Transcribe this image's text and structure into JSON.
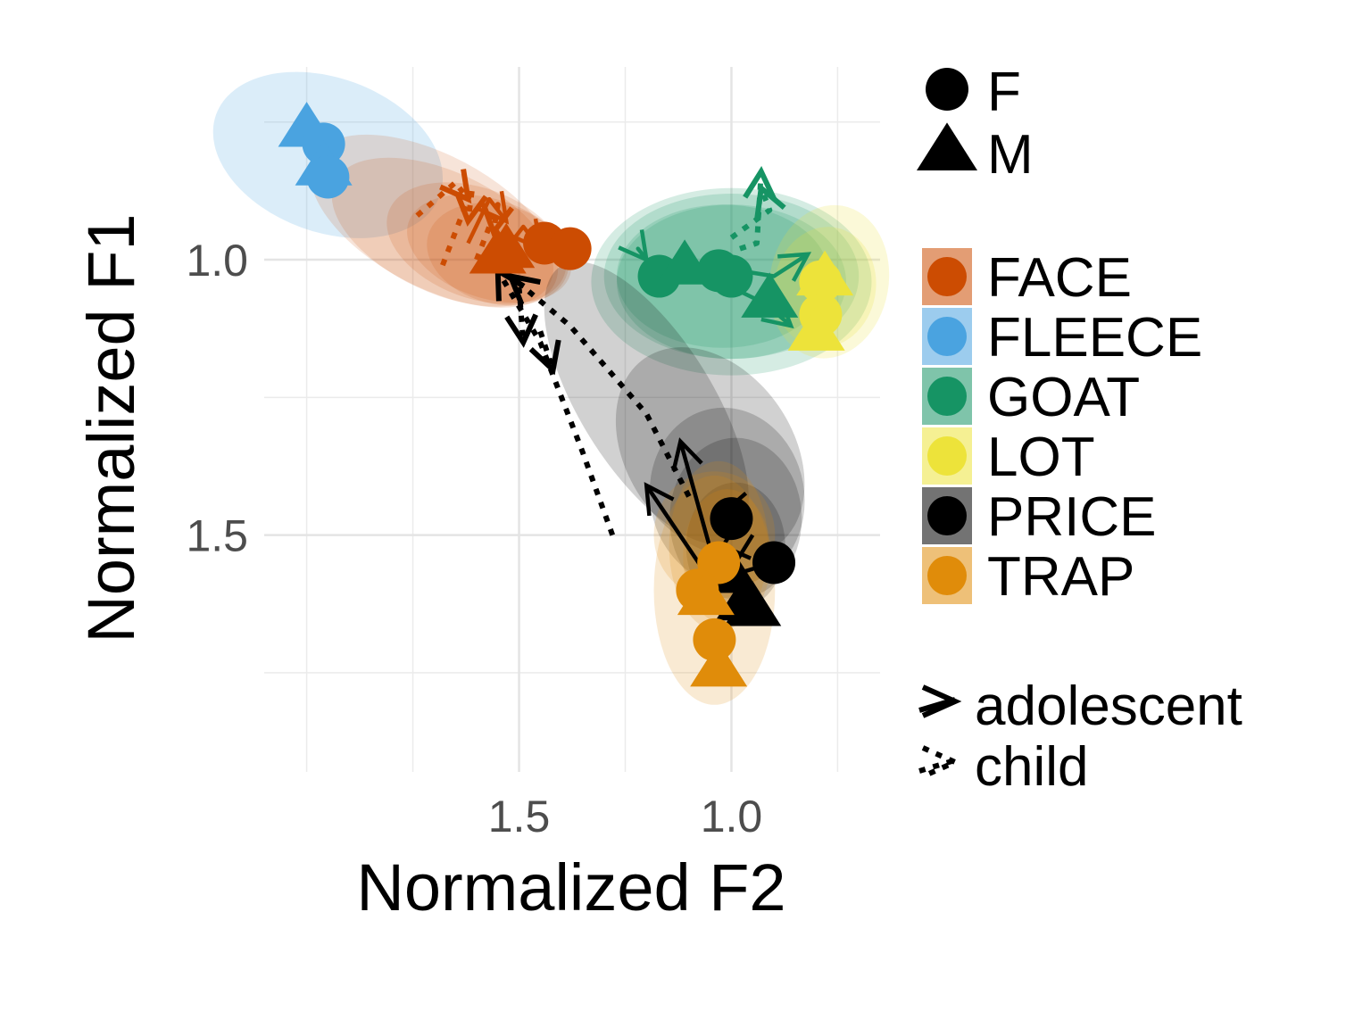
{
  "chart_data": {
    "type": "scatter",
    "title": "",
    "xlabel": "Normalized F2",
    "ylabel": "Normalized F1",
    "x_reversed": true,
    "y_reversed": true,
    "xlim": [
      2.1,
      0.65
    ],
    "ylim": [
      0.65,
      1.93
    ],
    "x_ticks": [
      {
        "value": 1.5,
        "label": "1.5"
      },
      {
        "value": 1.0,
        "label": "1.0"
      }
    ],
    "x_minor_grid": [
      2.0,
      1.75,
      1.25,
      0.75
    ],
    "y_ticks": [
      {
        "value": 1.0,
        "label": "1.0"
      },
      {
        "value": 1.5,
        "label": "1.5"
      }
    ],
    "y_minor_grid": [
      0.75,
      1.25,
      1.75
    ],
    "grid": true,
    "legend_position": "right",
    "shape_legend": {
      "items": [
        {
          "label": "F",
          "shape": "circle"
        },
        {
          "label": "M",
          "shape": "triangle"
        }
      ]
    },
    "color_legend": {
      "items": [
        {
          "label": "FACE",
          "color": "#cc4c02"
        },
        {
          "label": "FLEECE",
          "color": "#4aa3e0"
        },
        {
          "label": "GOAT",
          "color": "#169464"
        },
        {
          "label": "LOT",
          "color": "#ede33a"
        },
        {
          "label": "PRICE",
          "color": "#000000"
        },
        {
          "label": "TRAP",
          "color": "#e08c0a"
        }
      ]
    },
    "linetype_legend": {
      "items": [
        {
          "label": "adolescent",
          "dash": "solid"
        },
        {
          "label": "child",
          "dash": "dotted"
        }
      ]
    },
    "ellipses": [
      {
        "vowel": "FLEECE",
        "color": "#4aa3e0",
        "opacity": 0.2,
        "cx": 1.95,
        "cy": 0.81,
        "rx": 0.28,
        "ry": 0.14,
        "angle": 20
      },
      {
        "vowel": "FACE",
        "color": "#cc4c02",
        "opacity": 0.15,
        "cx": 1.7,
        "cy": 0.93,
        "rx": 0.32,
        "ry": 0.12,
        "angle": 28
      },
      {
        "vowel": "FACE",
        "color": "#cc4c02",
        "opacity": 0.15,
        "cx": 1.68,
        "cy": 0.95,
        "rx": 0.28,
        "ry": 0.11,
        "angle": 25
      },
      {
        "vowel": "FACE",
        "color": "#cc4c02",
        "opacity": 0.15,
        "cx": 1.6,
        "cy": 0.97,
        "rx": 0.22,
        "ry": 0.1,
        "angle": 20
      },
      {
        "vowel": "FACE",
        "color": "#cc4c02",
        "opacity": 0.15,
        "cx": 1.57,
        "cy": 0.98,
        "rx": 0.2,
        "ry": 0.09,
        "angle": 18
      },
      {
        "vowel": "FACE",
        "color": "#cc4c02",
        "opacity": 0.15,
        "cx": 1.55,
        "cy": 0.99,
        "rx": 0.17,
        "ry": 0.09,
        "angle": 15
      },
      {
        "vowel": "GOAT",
        "color": "#169464",
        "opacity": 0.18,
        "cx": 1.0,
        "cy": 1.04,
        "rx": 0.33,
        "ry": 0.17,
        "angle": 0
      },
      {
        "vowel": "GOAT",
        "color": "#169464",
        "opacity": 0.18,
        "cx": 1.0,
        "cy": 1.03,
        "rx": 0.3,
        "ry": 0.15,
        "angle": 0
      },
      {
        "vowel": "GOAT",
        "color": "#169464",
        "opacity": 0.18,
        "cx": 1.0,
        "cy": 1.04,
        "rx": 0.27,
        "ry": 0.14,
        "angle": 0
      },
      {
        "vowel": "GOAT",
        "color": "#169464",
        "opacity": 0.18,
        "cx": 1.02,
        "cy": 1.03,
        "rx": 0.25,
        "ry": 0.13,
        "angle": 0
      },
      {
        "vowel": "LOT",
        "color": "#ede33a",
        "opacity": 0.2,
        "cx": 0.77,
        "cy": 1.04,
        "rx": 0.14,
        "ry": 0.14,
        "angle": 10
      },
      {
        "vowel": "LOT",
        "color": "#ede33a",
        "opacity": 0.2,
        "cx": 0.78,
        "cy": 1.05,
        "rx": 0.12,
        "ry": 0.11,
        "angle": 10
      },
      {
        "vowel": "PRICE",
        "color": "#000000",
        "opacity": 0.18,
        "cx": 1.2,
        "cy": 1.26,
        "rx": 0.38,
        "ry": 0.12,
        "angle": 58
      },
      {
        "vowel": "PRICE",
        "color": "#000000",
        "opacity": 0.18,
        "cx": 1.05,
        "cy": 1.35,
        "rx": 0.27,
        "ry": 0.15,
        "angle": 55
      },
      {
        "vowel": "PRICE",
        "color": "#000000",
        "opacity": 0.18,
        "cx": 1.01,
        "cy": 1.43,
        "rx": 0.21,
        "ry": 0.14,
        "angle": 80
      },
      {
        "vowel": "PRICE",
        "color": "#000000",
        "opacity": 0.18,
        "cx": 0.99,
        "cy": 1.47,
        "rx": 0.19,
        "ry": 0.12,
        "angle": 90
      },
      {
        "vowel": "PRICE",
        "color": "#000000",
        "opacity": 0.18,
        "cx": 0.99,
        "cy": 1.52,
        "rx": 0.15,
        "ry": 0.09,
        "angle": 90
      },
      {
        "vowel": "TRAP",
        "color": "#e08c0a",
        "opacity": 0.18,
        "cx": 1.04,
        "cy": 1.6,
        "rx": 0.27,
        "ry": 0.11,
        "angle": 90
      },
      {
        "vowel": "TRAP",
        "color": "#e08c0a",
        "opacity": 0.18,
        "cx": 1.04,
        "cy": 1.5,
        "rx": 0.15,
        "ry": 0.11,
        "angle": 90
      },
      {
        "vowel": "TRAP",
        "color": "#e08c0a",
        "opacity": 0.18,
        "cx": 1.03,
        "cy": 1.52,
        "rx": 0.2,
        "ry": 0.09,
        "angle": 90
      },
      {
        "vowel": "TRAP",
        "color": "#e08c0a",
        "opacity": 0.18,
        "cx": 1.01,
        "cy": 1.54,
        "rx": 0.16,
        "ry": 0.08,
        "angle": 90
      }
    ],
    "trajectories": [
      {
        "vowel": "FACE",
        "group": "child",
        "color": "#cc4c02",
        "points": [
          [
            1.68,
            1.01
          ],
          [
            1.61,
            0.87
          ],
          [
            1.62,
            0.93
          ]
        ]
      },
      {
        "vowel": "FACE",
        "group": "child",
        "color": "#cc4c02",
        "points": [
          [
            1.6,
            1.0
          ],
          [
            1.55,
            0.9
          ],
          [
            1.56,
            0.95
          ]
        ]
      },
      {
        "vowel": "FACE",
        "group": "child",
        "color": "#cc4c02",
        "points": [
          [
            1.74,
            0.92
          ],
          [
            1.65,
            0.86
          ],
          [
            1.62,
            0.89
          ]
        ]
      },
      {
        "vowel": "FACE",
        "group": "adolescent",
        "color": "#cc4c02",
        "points": [
          [
            1.62,
            0.97
          ],
          [
            1.57,
            0.89
          ],
          [
            1.53,
            0.93
          ]
        ]
      },
      {
        "vowel": "FACE",
        "group": "adolescent",
        "color": "#cc4c02",
        "points": [
          [
            1.52,
            0.97
          ],
          [
            1.49,
            0.94
          ],
          [
            1.45,
            0.98
          ]
        ]
      },
      {
        "vowel": "GOAT",
        "group": "child",
        "color": "#169464",
        "points": [
          [
            0.98,
            0.98
          ],
          [
            0.94,
            0.97
          ],
          [
            0.93,
            0.84
          ]
        ]
      },
      {
        "vowel": "GOAT",
        "group": "child",
        "color": "#169464",
        "points": [
          [
            1.0,
            0.96
          ],
          [
            0.91,
            0.91
          ],
          [
            0.93,
            0.87
          ]
        ]
      },
      {
        "vowel": "GOAT",
        "group": "adolescent",
        "color": "#169464",
        "points": [
          [
            1.17,
            1.03
          ],
          [
            1.22,
            0.98
          ],
          [
            1.2,
            1.0
          ]
        ]
      },
      {
        "vowel": "GOAT",
        "group": "adolescent",
        "color": "#169464",
        "points": [
          [
            0.98,
            1.02
          ],
          [
            0.9,
            1.03
          ],
          [
            0.82,
            0.99
          ]
        ]
      },
      {
        "vowel": "GOAT",
        "group": "adolescent",
        "color": "#169464",
        "points": [
          [
            1.0,
            1.05
          ],
          [
            0.92,
            1.08
          ],
          [
            0.86,
            1.12
          ]
        ]
      },
      {
        "vowel": "PRICE",
        "group": "child",
        "color": "#000000",
        "points": [
          [
            1.28,
            1.5
          ],
          [
            1.35,
            1.35
          ],
          [
            1.45,
            1.15
          ],
          [
            1.55,
            1.02
          ]
        ]
      },
      {
        "vowel": "PRICE",
        "group": "child",
        "color": "#000000",
        "points": [
          [
            1.1,
            1.43
          ],
          [
            1.2,
            1.28
          ],
          [
            1.38,
            1.12
          ],
          [
            1.52,
            1.03
          ]
        ]
      },
      {
        "vowel": "PRICE",
        "group": "child",
        "color": "#000000",
        "points": [
          [
            1.45,
            1.13
          ],
          [
            1.42,
            1.2
          ]
        ]
      },
      {
        "vowel": "PRICE",
        "group": "child",
        "color": "#000000",
        "points": [
          [
            1.5,
            1.05
          ],
          [
            1.49,
            1.15
          ]
        ]
      },
      {
        "vowel": "PRICE",
        "group": "adolescent",
        "color": "#000000",
        "points": [
          [
            0.98,
            1.47
          ],
          [
            1.06,
            1.57
          ],
          [
            1.2,
            1.41
          ]
        ]
      },
      {
        "vowel": "PRICE",
        "group": "adolescent",
        "color": "#000000",
        "points": [
          [
            0.9,
            1.55
          ],
          [
            1.03,
            1.58
          ],
          [
            1.12,
            1.33
          ]
        ]
      },
      {
        "vowel": "PRICE",
        "group": "adolescent",
        "color": "#000000",
        "points": [
          [
            0.95,
            1.5
          ],
          [
            0.99,
            1.55
          ],
          [
            1.02,
            1.52
          ]
        ]
      },
      {
        "vowel": "PRICE",
        "group": "adolescent",
        "color": "#000000",
        "points": [
          [
            0.96,
            1.45
          ],
          [
            1.02,
            1.46
          ]
        ]
      }
    ],
    "points": [
      {
        "vowel": "FLEECE",
        "sex": "M",
        "x": 2.0,
        "y": 0.76
      },
      {
        "vowel": "FLEECE",
        "sex": "F",
        "x": 1.96,
        "y": 0.79
      },
      {
        "vowel": "FLEECE",
        "sex": "M",
        "x": 1.96,
        "y": 0.83
      },
      {
        "vowel": "FLEECE",
        "sex": "F",
        "x": 1.95,
        "y": 0.85
      },
      {
        "vowel": "FACE",
        "sex": "M",
        "x": 1.55,
        "y": 0.99
      },
      {
        "vowel": "FACE",
        "sex": "M",
        "x": 1.53,
        "y": 0.98
      },
      {
        "vowel": "FACE",
        "sex": "F",
        "x": 1.44,
        "y": 0.97
      },
      {
        "vowel": "FACE",
        "sex": "F",
        "x": 1.38,
        "y": 0.98
      },
      {
        "vowel": "GOAT",
        "sex": "F",
        "x": 1.17,
        "y": 1.03
      },
      {
        "vowel": "GOAT",
        "sex": "M",
        "x": 1.11,
        "y": 1.01
      },
      {
        "vowel": "GOAT",
        "sex": "F",
        "x": 1.0,
        "y": 1.03
      },
      {
        "vowel": "GOAT",
        "sex": "F",
        "x": 1.03,
        "y": 1.02
      },
      {
        "vowel": "GOAT",
        "sex": "M",
        "x": 0.91,
        "y": 1.07
      },
      {
        "vowel": "LOT",
        "sex": "M",
        "x": 0.78,
        "y": 1.03
      },
      {
        "vowel": "LOT",
        "sex": "F",
        "x": 0.79,
        "y": 1.04
      },
      {
        "vowel": "LOT",
        "sex": "F",
        "x": 0.79,
        "y": 1.1
      },
      {
        "vowel": "LOT",
        "sex": "M",
        "x": 0.8,
        "y": 1.13
      },
      {
        "vowel": "PRICE",
        "sex": "F",
        "x": 1.0,
        "y": 1.47
      },
      {
        "vowel": "PRICE",
        "sex": "F",
        "x": 0.9,
        "y": 1.55
      },
      {
        "vowel": "PRICE",
        "sex": "M",
        "x": 0.97,
        "y": 1.62
      },
      {
        "vowel": "PRICE",
        "sex": "M",
        "x": 0.95,
        "y": 1.63
      },
      {
        "vowel": "PRICE",
        "sex": "M",
        "x": 1.0,
        "y": 1.57
      },
      {
        "vowel": "TRAP",
        "sex": "F",
        "x": 1.03,
        "y": 1.55
      },
      {
        "vowel": "TRAP",
        "sex": "F",
        "x": 1.08,
        "y": 1.6
      },
      {
        "vowel": "TRAP",
        "sex": "M",
        "x": 1.06,
        "y": 1.61
      },
      {
        "vowel": "TRAP",
        "sex": "F",
        "x": 1.04,
        "y": 1.69
      },
      {
        "vowel": "TRAP",
        "sex": "M",
        "x": 1.03,
        "y": 1.74
      }
    ]
  }
}
